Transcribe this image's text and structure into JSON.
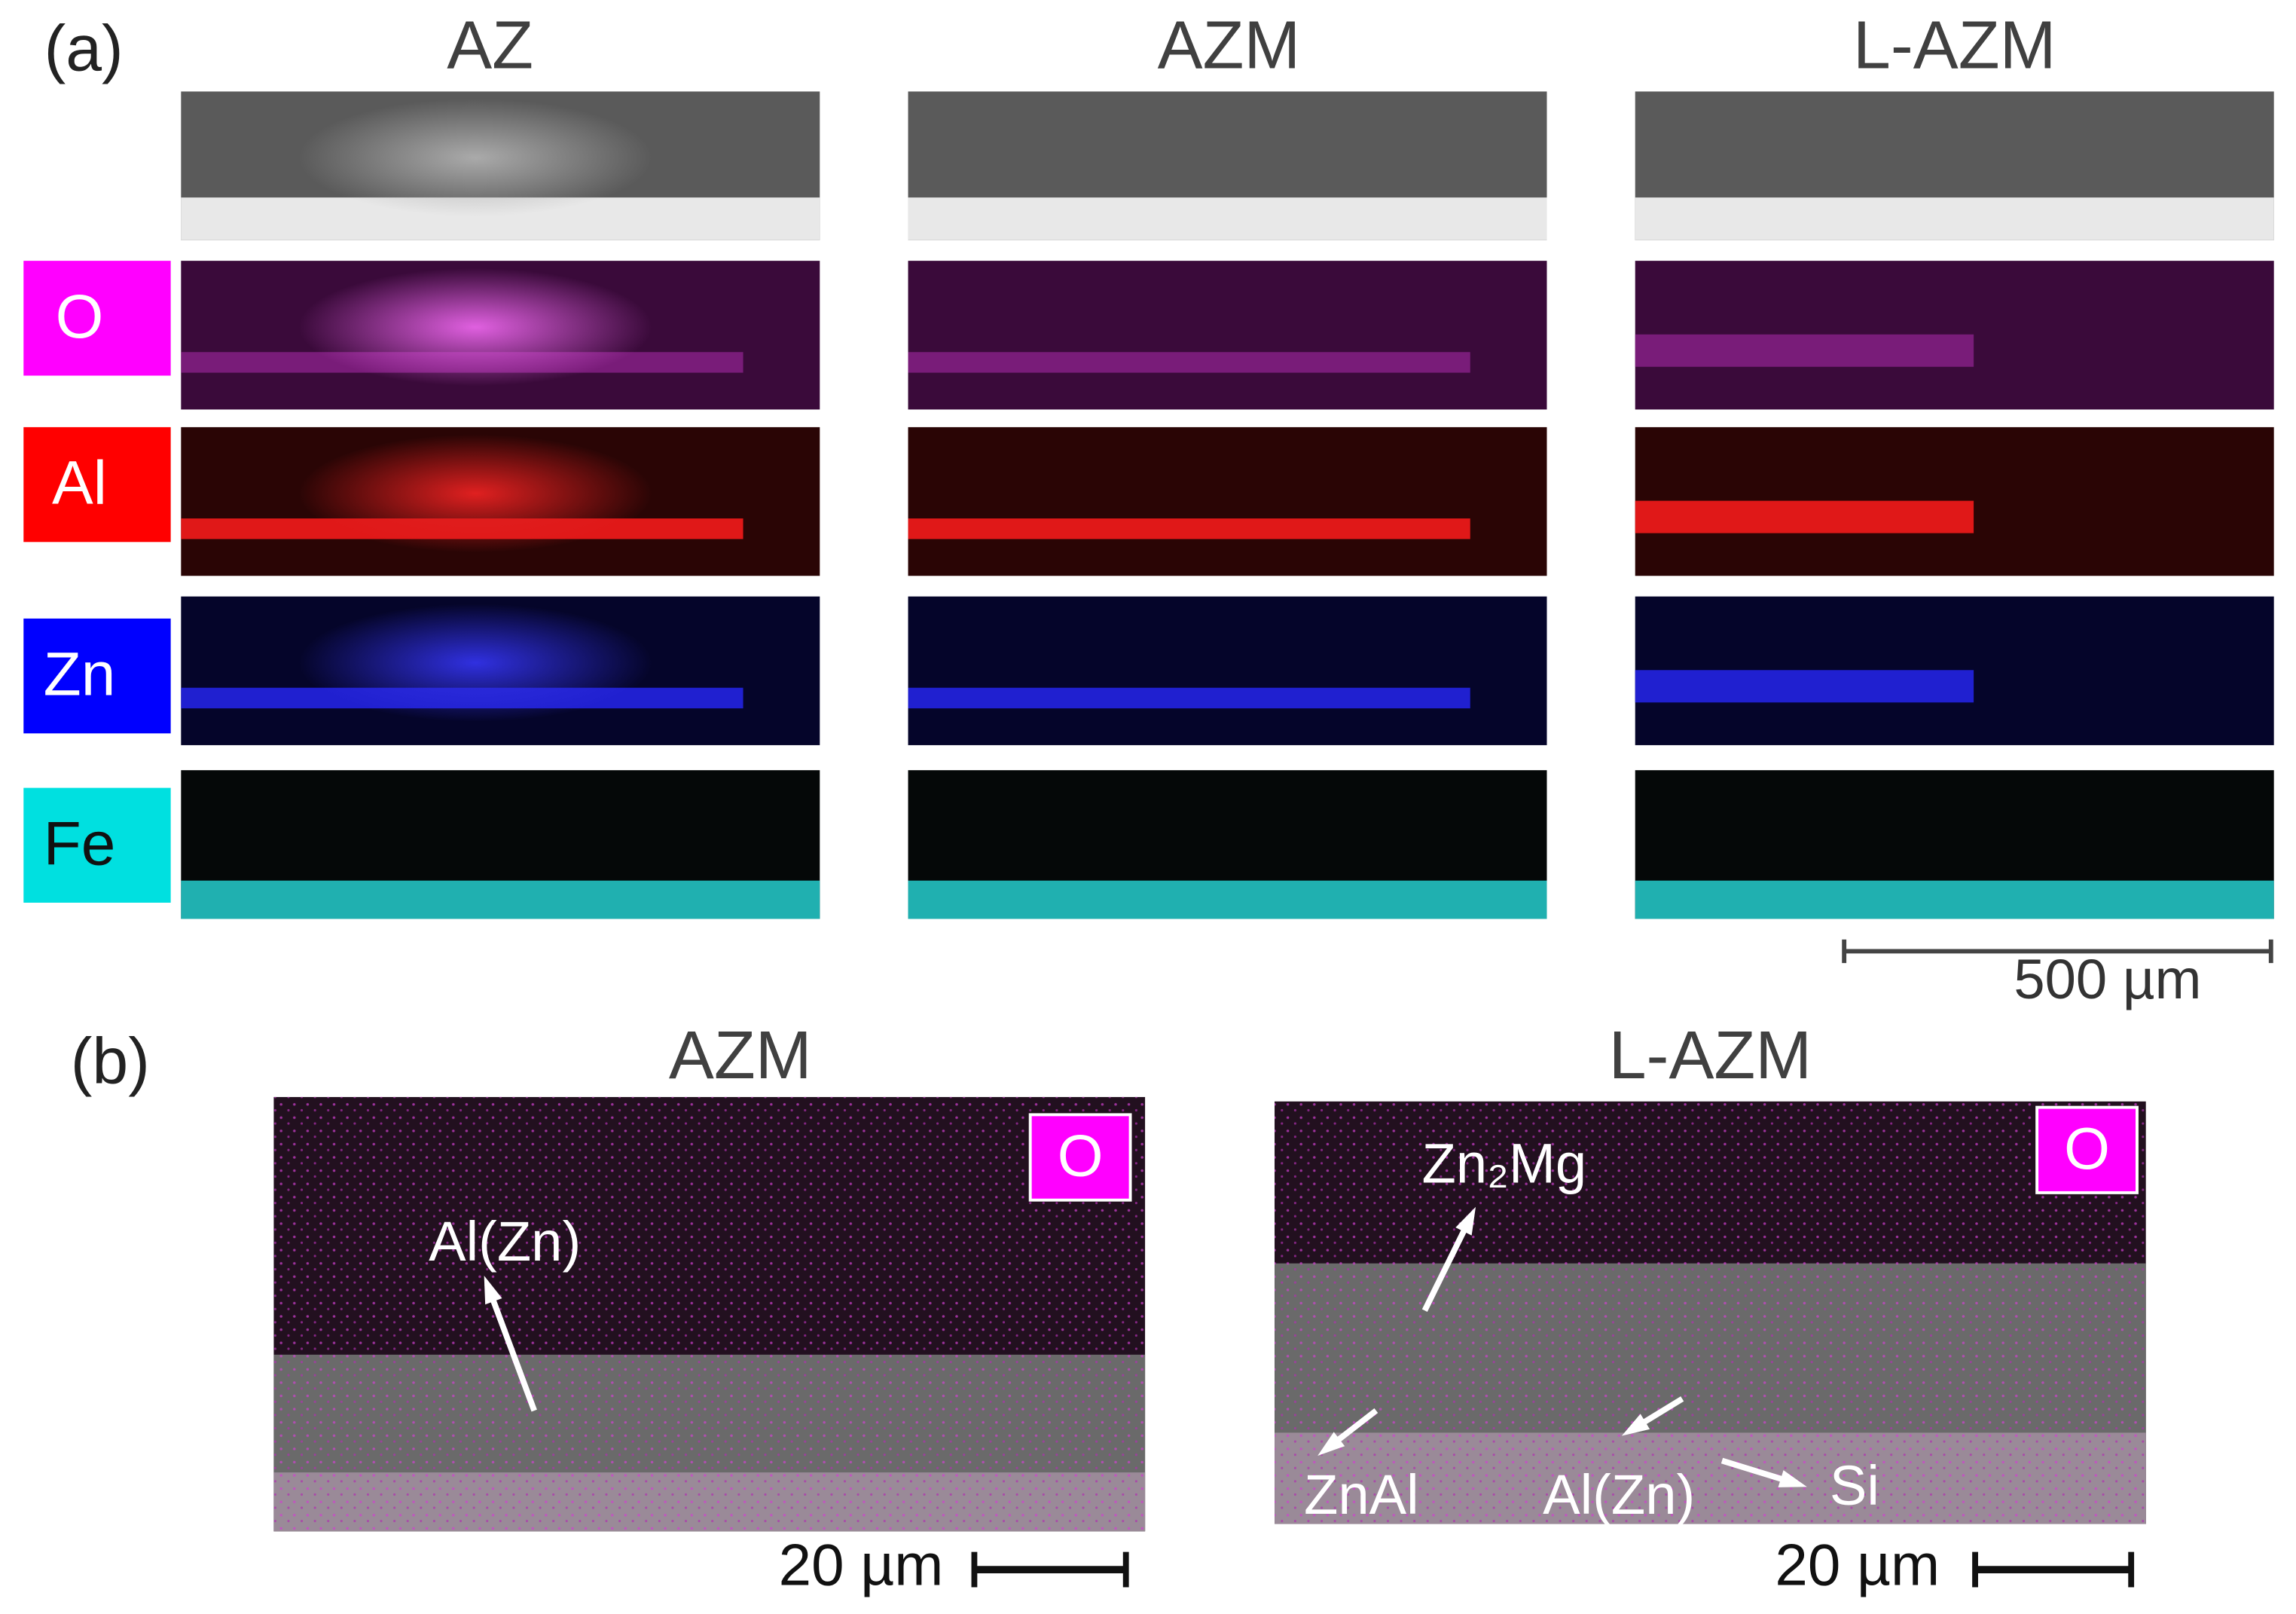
{
  "panel_a": {
    "label": "(a)",
    "columns": [
      "AZ",
      "AZM",
      "L-AZM"
    ],
    "rows": [
      "O",
      "Al",
      "Zn",
      "Fe"
    ],
    "scale_bar": "500 µm"
  },
  "panel_b": {
    "label": "(b)",
    "images": [
      {
        "title": "AZM",
        "badge": "O",
        "annotations": [
          "Al(Zn)"
        ],
        "scale_bar": "20 µm"
      },
      {
        "title": "L-AZM",
        "badge": "O",
        "annotations": [
          "Zn₂Mg",
          "ZnAl",
          "Al(Zn)",
          "Si"
        ],
        "scale_bar": "20 µm"
      }
    ]
  }
}
